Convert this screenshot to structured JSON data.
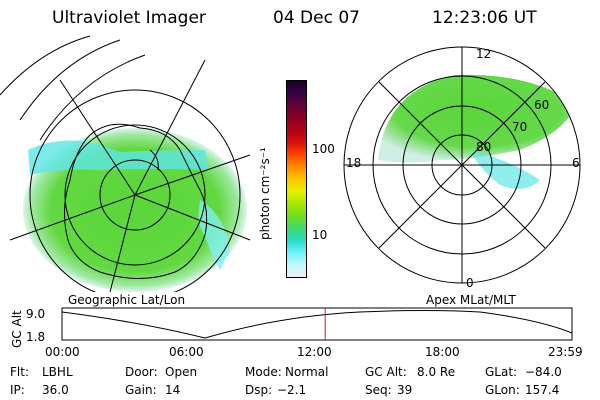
{
  "header": {
    "instrument": "Ultraviolet Imager",
    "date": "04 Dec 07",
    "time": "12:23:06 UT"
  },
  "left_panel": {
    "caption": "Geographic Lat/Lon"
  },
  "right_panel": {
    "caption": "Apex MLat/MLT",
    "mlt_labels": {
      "top": "12",
      "left": "18",
      "right": "6",
      "bottom": "0"
    },
    "lat_labels": [
      "60",
      "70",
      "80"
    ]
  },
  "colorbar": {
    "title": "photon cm⁻²s⁻¹",
    "ticks": [
      "100",
      "10"
    ],
    "colors": [
      "#1a0028",
      "#3a0048",
      "#64003a",
      "#8a0022",
      "#b0001a",
      "#d8100c",
      "#ff4400",
      "#ff8c00",
      "#ffc400",
      "#e8f000",
      "#a8e800",
      "#70e020",
      "#40d868",
      "#28dcc8",
      "#70f0ff",
      "#c0f8ff",
      "#f0f0f0"
    ]
  },
  "altitude_plot": {
    "ylabel": "GC Alt",
    "yticks": [
      "9.0",
      "1.8"
    ],
    "xticks": [
      "00:00",
      "06:00",
      "12:00",
      "18:00",
      "23:59"
    ],
    "marker_time_hours": 12.385
  },
  "status": {
    "row1": [
      {
        "label": "Flt:",
        "value": "LBHL"
      },
      {
        "label": "Door:",
        "value": "Open"
      },
      {
        "label": "Mode:",
        "value": "Normal"
      },
      {
        "label": "GC Alt:",
        "value": "8.0 Re"
      },
      {
        "label": "GLat:",
        "value": "−84.0"
      }
    ],
    "row2": [
      {
        "label": "IP:",
        "value": "36.0"
      },
      {
        "label": "Gain:",
        "value": "14"
      },
      {
        "label": "Dsp:",
        "value": "−2.1"
      },
      {
        "label": "Seq:",
        "value": "39"
      },
      {
        "label": "GLon:",
        "value": "157.4"
      }
    ]
  },
  "colors": {
    "aurora_green": "#5ad63a",
    "aurora_cyan": "#5ee6e6",
    "marker": "#cc2222"
  }
}
